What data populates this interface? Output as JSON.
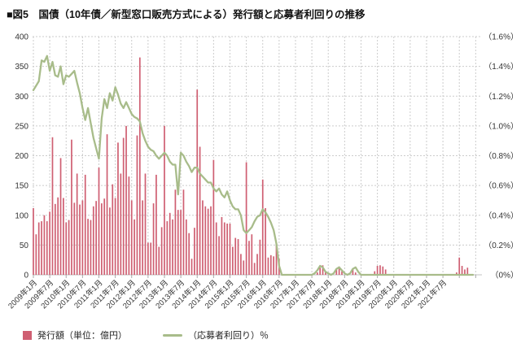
{
  "title": "■図5　国債（10年債／新型窓口販売方式による）発行額と応募者利回りの推移",
  "colors": {
    "bar": "#cf5f72",
    "line": "#a8bc8a",
    "grid": "#cccccc",
    "baseline": "#c0c0c0",
    "tick": "#aaaaaa",
    "text": "#333333"
  },
  "legend": {
    "issuance_label": "発行額（単位：億円）",
    "yield_label": "（応募者利回り）％"
  },
  "chart_data": {
    "type": "bar+line",
    "title": "国債（10年債／新型窓口販売方式による）発行額と応募者利回りの推移",
    "x_start_month": "2009-01",
    "x_months": 162,
    "x_tick_interval_months": 6,
    "grid": true,
    "legend_position": "bottom",
    "x_tick_labels": [
      "2009年1月",
      "2009年7月",
      "2010年1月",
      "2010年7月",
      "2011年1月",
      "2011年7月",
      "2012年1月",
      "2012年7月",
      "2013年1月",
      "2013年7月",
      "2014年1月",
      "2014年7月",
      "2015年1月",
      "2015年7月",
      "2016年1月",
      "2016年7月",
      "2017年1月",
      "2017年7月",
      "2018年1月",
      "2018年7月",
      "2019年1月",
      "2019年7月",
      "2020年1月",
      "2020年7月",
      "2021年1月",
      "2021年7月"
    ],
    "left_axis": {
      "label": "発行額（億円）",
      "min": 0,
      "max": 400,
      "step": 50
    },
    "right_axis": {
      "label": "応募者利回り（%）",
      "min": 0,
      "max": 1.6,
      "step": 0.2,
      "ticks": [
        "（0%）",
        "（0.2%）",
        "（0.4%）",
        "（0.6%）",
        "（0.8%）",
        "（1.0%）",
        "（1.2%）",
        "（1.4%）",
        "（1.6%）"
      ]
    },
    "series": {
      "issuance": [
        112,
        68,
        88,
        90,
        100,
        90,
        106,
        231,
        119,
        130,
        196,
        129,
        88,
        92,
        227,
        121,
        170,
        118,
        125,
        168,
        94,
        92,
        115,
        124,
        180,
        120,
        128,
        236,
        113,
        152,
        129,
        222,
        170,
        230,
        250,
        165,
        125,
        93,
        234,
        365,
        125,
        170,
        54,
        54,
        120,
        168,
        47,
        80,
        250,
        90,
        104,
        93,
        143,
        109,
        109,
        143,
        93,
        70,
        27,
        79,
        311,
        215,
        125,
        115,
        111,
        115,
        193,
        88,
        65,
        97,
        88,
        86,
        86,
        47,
        62,
        60,
        35,
        24,
        189,
        57,
        68,
        20,
        35,
        59,
        160,
        112,
        29,
        33,
        31,
        50,
        27,
        0,
        0,
        0,
        0,
        0,
        0,
        0,
        0,
        0,
        0,
        0,
        0,
        0,
        4,
        12,
        16,
        5,
        0,
        0,
        0,
        9,
        14,
        6,
        0,
        0,
        0,
        9,
        4,
        0,
        0,
        0,
        0,
        0,
        0,
        6,
        15,
        16,
        14,
        9,
        0,
        0,
        0,
        0,
        0,
        0,
        0,
        0,
        0,
        0,
        0,
        0,
        0,
        0,
        0,
        0,
        0,
        0,
        0,
        0,
        0,
        0,
        0,
        0,
        0,
        4,
        29,
        15,
        9,
        12,
        0,
        0
      ],
      "yield_pct": [
        1.24,
        1.27,
        1.3,
        1.44,
        1.43,
        1.47,
        1.37,
        1.43,
        1.34,
        1.33,
        1.4,
        1.28,
        1.34,
        1.33,
        1.35,
        1.37,
        1.29,
        1.22,
        1.12,
        1.04,
        1.12,
        1.02,
        0.92,
        0.85,
        0.78,
        1.05,
        1.18,
        1.12,
        1.22,
        1.17,
        1.26,
        1.21,
        1.15,
        1.12,
        1.16,
        1.12,
        1.08,
        1.06,
        1.05,
        1.03,
        0.95,
        0.9,
        0.86,
        0.84,
        0.83,
        0.8,
        0.78,
        0.8,
        0.82,
        0.8,
        0.76,
        0.74,
        0.74,
        0.54,
        0.82,
        0.8,
        0.76,
        0.73,
        0.69,
        0.72,
        0.72,
        0.68,
        0.66,
        0.64,
        0.62,
        0.62,
        0.58,
        0.56,
        0.58,
        0.54,
        0.52,
        0.56,
        0.5,
        0.46,
        0.44,
        0.44,
        0.4,
        0.3,
        0.28,
        0.3,
        0.32,
        0.36,
        0.39,
        0.4,
        0.44,
        0.42,
        0.39,
        0.35,
        0.3,
        0.21,
        0.06,
        0,
        0,
        0,
        0,
        0,
        0,
        0,
        0,
        0,
        0,
        0,
        0,
        0.01,
        0.03,
        0.06,
        0.05,
        0.02,
        0.01,
        0,
        0.01,
        0.04,
        0.05,
        0.03,
        0.01,
        0,
        0.01,
        0.04,
        0.05,
        0.02,
        0,
        0,
        0,
        0,
        0,
        0,
        0,
        0,
        0,
        0,
        0,
        0,
        0,
        0,
        0,
        0,
        0,
        0,
        0,
        0,
        0,
        0,
        0,
        0,
        0,
        0,
        0,
        0,
        0,
        0,
        0,
        0,
        0,
        0,
        0,
        0,
        0,
        0,
        0,
        0,
        0,
        0
      ]
    }
  }
}
